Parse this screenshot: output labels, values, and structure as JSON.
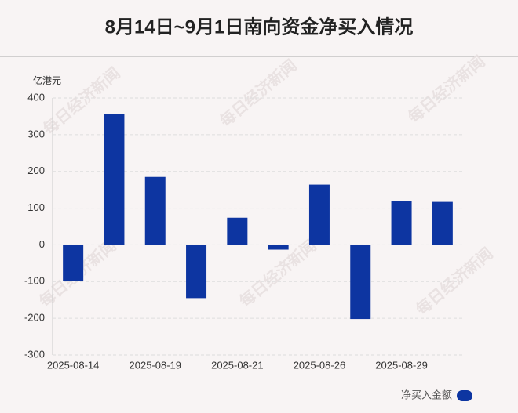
{
  "chart_data": {
    "type": "bar",
    "title": "8月14日~9月1日南向资金净买入情况",
    "y_unit": "亿港元",
    "watermark": "每日经济新闻",
    "categories": [
      "2025-08-14",
      null,
      "2025-08-19",
      null,
      "2025-08-21",
      null,
      "2025-08-26",
      null,
      "2025-08-29",
      null
    ],
    "series": [
      {
        "name": "净买入金额",
        "color": "#0d35a1",
        "values": [
          -98,
          357,
          185,
          -145,
          74,
          -13,
          164,
          -202,
          119,
          117
        ]
      }
    ],
    "ylim": [
      -300,
      400
    ],
    "yticks": [
      -300,
      -200,
      -100,
      0,
      100,
      200,
      300,
      400
    ],
    "grid": true,
    "legend": "bottom-right"
  }
}
